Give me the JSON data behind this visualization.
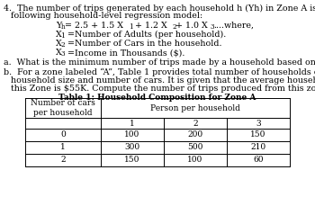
{
  "bg_color": "#ffffff",
  "text_color": "#000000",
  "font_size_body": 6.8,
  "font_size_table": 6.5,
  "table_title": "Table 1: Household Composition for Zone A",
  "col_subheaders": [
    "1",
    "2",
    "3"
  ],
  "row_labels": [
    "0",
    "1",
    "2"
  ],
  "table_data": [
    [
      100,
      200,
      150
    ],
    [
      300,
      500,
      210
    ],
    [
      150,
      100,
      60
    ]
  ]
}
